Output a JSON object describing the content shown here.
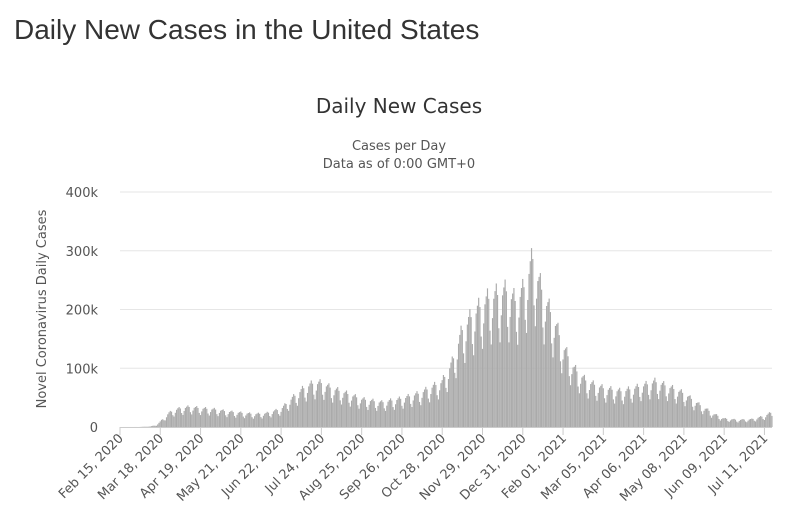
{
  "page": {
    "title": "Daily New Cases in the United States"
  },
  "colors": {
    "bar": "#aaaaaa",
    "grid": "#e6e6e6",
    "axis": "#cccccc",
    "text": "#333333",
    "muted": "#555555"
  },
  "chart_data": {
    "type": "bar",
    "title": "Daily New Cases",
    "subtitle_lines": [
      "Cases per Day",
      "Data as of 0:00 GMT+0"
    ],
    "xlabel": "",
    "ylabel": "Novel Coronavirus Daily Cases",
    "ylim": [
      0,
      400000
    ],
    "yticks": [
      0,
      100000,
      200000,
      300000,
      400000
    ],
    "ytick_labels": [
      "0",
      "100k",
      "200k",
      "300k",
      "400k"
    ],
    "x_start": "Feb 15, 2020",
    "x_end": "Jul 17, 2021",
    "xtick_labels": [
      "Feb 15, 2020",
      "Mar 18, 2020",
      "Apr 19, 2020",
      "May 21, 2020",
      "Jun 22, 2020",
      "Jul 24, 2020",
      "Aug 25, 2020",
      "Sep 26, 2020",
      "Oct 28, 2020",
      "Nov 29, 2020",
      "Dec 31, 2020",
      "Feb 01, 2021",
      "Mar 05, 2021",
      "Apr 06, 2021",
      "May 08, 2021",
      "Jun 09, 2021",
      "Jul 11, 2021"
    ],
    "grid": true,
    "legend": "none",
    "series": [
      {
        "name": "",
        "x": [
          "Feb 15, 2020",
          "Mar 01, 2020",
          "Mar 10, 2020",
          "Mar 15, 2020",
          "Mar 20, 2020",
          "Mar 25, 2020",
          "Apr 01, 2020",
          "Apr 10, 2020",
          "Apr 19, 2020",
          "May 01, 2020",
          "May 10, 2020",
          "May 21, 2020",
          "Jun 01, 2020",
          "Jun 10, 2020",
          "Jun 22, 2020",
          "Jul 01, 2020",
          "Jul 10, 2020",
          "Jul 17, 2020",
          "Jul 24, 2020",
          "Aug 01, 2020",
          "Aug 10, 2020",
          "Aug 25, 2020",
          "Sep 10, 2020",
          "Sep 26, 2020",
          "Oct 10, 2020",
          "Oct 28, 2020",
          "Nov 05, 2020",
          "Nov 13, 2020",
          "Nov 20, 2020",
          "Nov 29, 2020",
          "Dec 05, 2020",
          "Dec 12, 2020",
          "Dec 18, 2020",
          "Dec 25, 2020",
          "Dec 31, 2020",
          "Jan 04, 2021",
          "Jan 08, 2021",
          "Jan 12, 2021",
          "Jan 18, 2021",
          "Jan 25, 2021",
          "Feb 01, 2021",
          "Feb 10, 2021",
          "Feb 20, 2021",
          "Mar 05, 2021",
          "Mar 20, 2021",
          "Apr 06, 2021",
          "Apr 15, 2021",
          "Apr 25, 2021",
          "May 08, 2021",
          "May 20, 2021",
          "Jun 01, 2021",
          "Jun 09, 2021",
          "Jun 20, 2021",
          "Jul 01, 2021",
          "Jul 11, 2021",
          "Jul 17, 2021"
        ],
        "values": [
          0,
          50,
          800,
          3000,
          12000,
          22000,
          28000,
          31000,
          29000,
          27000,
          24000,
          22000,
          20000,
          21000,
          28000,
          45000,
          60000,
          67000,
          68000,
          60000,
          54000,
          43000,
          38000,
          44000,
          52000,
          70000,
          100000,
          150000,
          170000,
          190000,
          200000,
          205000,
          210000,
          195000,
          210000,
          235000,
          260000,
          230000,
          195000,
          165000,
          125000,
          90000,
          70000,
          60000,
          55000,
          64000,
          70000,
          63000,
          52000,
          35000,
          20000,
          13000,
          11000,
          12000,
          17000,
          23000
        ]
      }
    ]
  }
}
